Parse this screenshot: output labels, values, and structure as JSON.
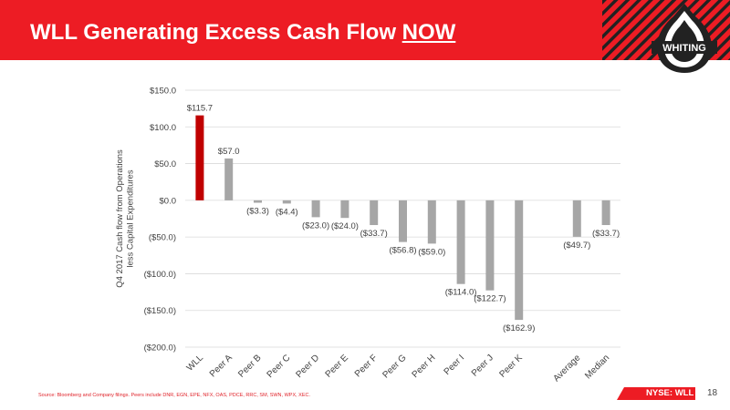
{
  "slide": {
    "title_main": "WLL Generating Excess Cash Flow",
    "title_emphasis": "NOW",
    "logo_text": "WHITING",
    "source_note": "Source: Bloomberg and Company filings. Peers include DNR, EGN, EPE, NFX, OAS, PDCE, RRC, SM, SWN, WPX, XEC.",
    "ticker_prefix": "NYSE: ",
    "ticker_symbol": "WLL",
    "page_number": "18"
  },
  "colors": {
    "brand_red": "#ed1c24",
    "highlight_bar": "#c00000",
    "peer_bar": "#a6a6a6"
  },
  "chart_data": {
    "type": "bar",
    "categories": [
      "WLL",
      "Peer A",
      "Peer B",
      "Peer C",
      "Peer D",
      "Peer E",
      "Peer F",
      "Peer G",
      "Peer H",
      "Peer I",
      "Peer J",
      "Peer K",
      "",
      "Average",
      "Median"
    ],
    "values": [
      115.7,
      57.0,
      -3.3,
      -4.4,
      -23.0,
      -24.0,
      -33.7,
      -56.8,
      -59.0,
      -114.0,
      -122.7,
      -162.9,
      null,
      -49.7,
      -33.7
    ],
    "data_labels": [
      "$115.7",
      "$57.0",
      "($3.3)",
      "($4.4)",
      "($23.0)",
      "($24.0)",
      "($33.7)",
      "($56.8)",
      "($59.0)",
      "($114.0)",
      "($122.7)",
      "($162.9)",
      "",
      "($49.7)",
      "($33.7)"
    ],
    "highlight_index": 0,
    "ylabel": [
      "Q4 2017 Cash flow from Operations",
      "less Capital Expenditures"
    ],
    "ylim": [
      -200,
      150
    ],
    "yticks": [
      150,
      100,
      50,
      0,
      -50,
      -100,
      -150,
      -200
    ],
    "ytick_labels": [
      "$150.0",
      "$100.0",
      "$50.0",
      "$0.0",
      "($50.0)",
      "($100.0)",
      "($150.0)",
      "($200.0)"
    ],
    "grid": true,
    "legend": "none"
  }
}
